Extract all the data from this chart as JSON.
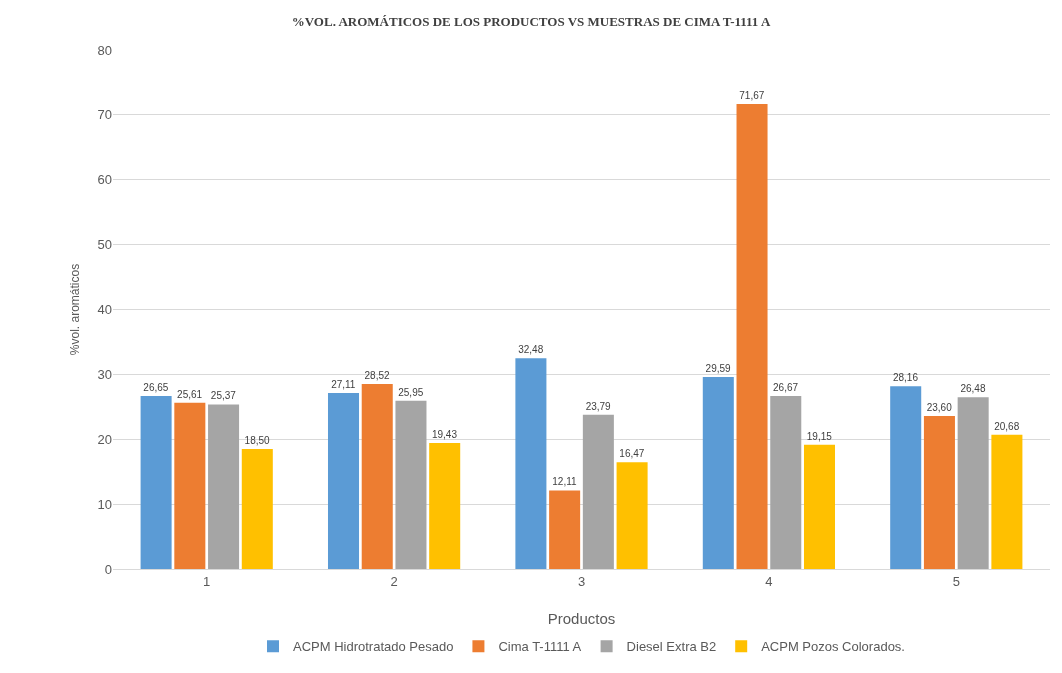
{
  "chart_data": {
    "type": "bar",
    "title": "%VOL. AROMÁTICOS DE LOS PRODUCTOS VS MUESTRAS DE CIMA T-1111 A",
    "xlabel": "Productos",
    "ylabel": "%vol. aromáticos",
    "categories": [
      "1",
      "2",
      "3",
      "4",
      "5"
    ],
    "series": [
      {
        "name": "ACPM Hidrotratado Pesado",
        "color": "#5b9bd5",
        "values": [
          26.65,
          27.11,
          32.48,
          29.59,
          28.16
        ],
        "value_labels": [
          "26,65",
          "27,11",
          "32,48",
          "29,59",
          "28,16"
        ]
      },
      {
        "name": "Cima T-1111 A",
        "color": "#ed7d31",
        "values": [
          25.61,
          28.52,
          12.11,
          71.67,
          23.6
        ],
        "value_labels": [
          "25,61",
          "28,52",
          "12,11",
          "71,67",
          "23,60"
        ]
      },
      {
        "name": "Diesel Extra B2",
        "color": "#a5a5a5",
        "values": [
          25.37,
          25.95,
          23.79,
          26.67,
          26.48
        ],
        "value_labels": [
          "25,37",
          "25,95",
          "23,79",
          "26,67",
          "26,48"
        ]
      },
      {
        "name": "ACPM Pozos Colorados.",
        "color": "#ffc000",
        "values": [
          18.5,
          19.43,
          16.47,
          19.15,
          20.68
        ],
        "value_labels": [
          "18,50",
          "19,43",
          "16,47",
          "19,15",
          "20,68"
        ]
      }
    ],
    "ylim": [
      0,
      80
    ],
    "yticks": [
      0,
      10,
      20,
      30,
      40,
      50,
      60,
      70,
      80
    ],
    "grid": "y",
    "legend": "bottom"
  }
}
